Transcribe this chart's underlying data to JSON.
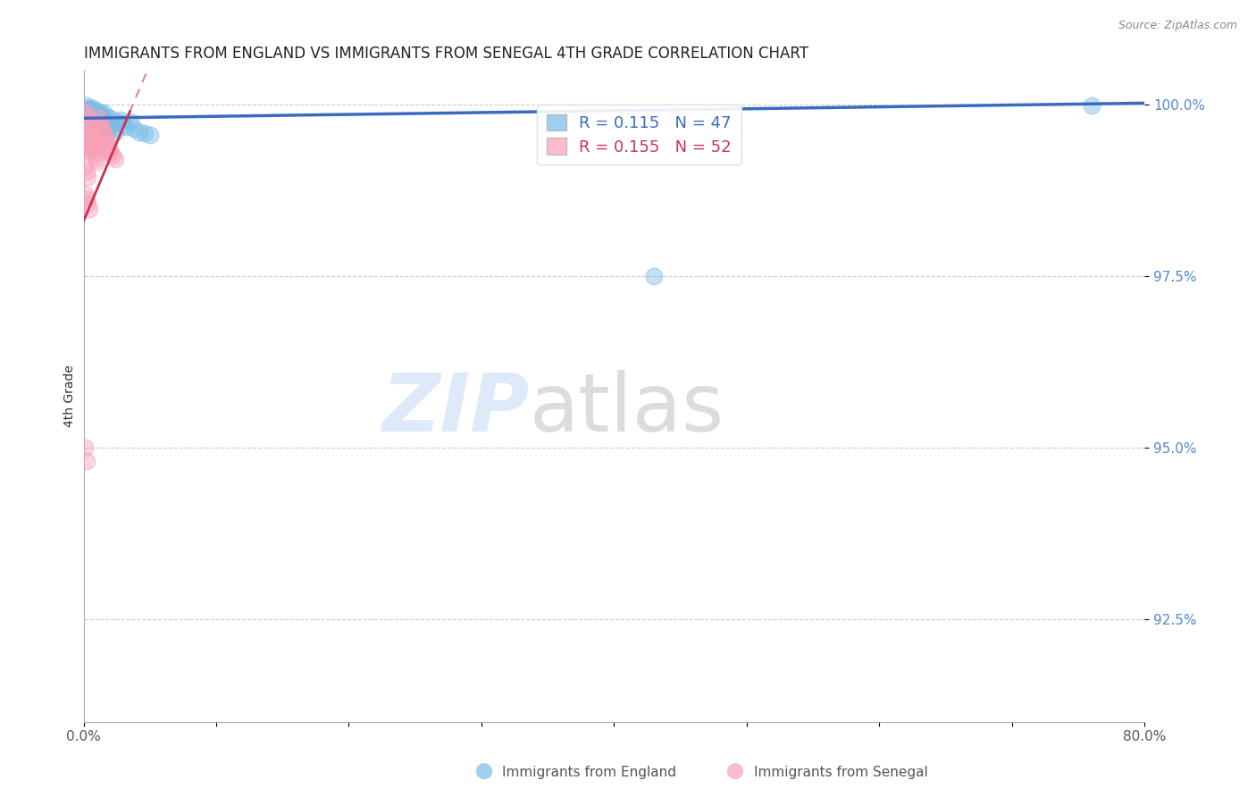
{
  "title": "IMMIGRANTS FROM ENGLAND VS IMMIGRANTS FROM SENEGAL 4TH GRADE CORRELATION CHART",
  "source": "Source: ZipAtlas.com",
  "ylabel": "4th Grade",
  "xlim": [
    0.0,
    0.8
  ],
  "ylim": [
    0.91,
    1.005
  ],
  "x_ticks": [
    0.0,
    0.1,
    0.2,
    0.3,
    0.4,
    0.5,
    0.6,
    0.7,
    0.8
  ],
  "x_tick_labels": [
    "0.0%",
    "",
    "",
    "",
    "",
    "",
    "",
    "",
    "80.0%"
  ],
  "y_ticks": [
    0.925,
    0.95,
    0.975,
    1.0
  ],
  "y_tick_labels": [
    "92.5%",
    "95.0%",
    "97.5%",
    "100.0%"
  ],
  "england_color": "#7abce8",
  "senegal_color": "#f8a0b8",
  "england_R": 0.115,
  "england_N": 47,
  "senegal_R": 0.155,
  "senegal_N": 52,
  "england_line_color": "#3a6bbf",
  "senegal_line_color": "#cc3355",
  "england_points_x": [
    0.001,
    0.002,
    0.003,
    0.004,
    0.005,
    0.006,
    0.007,
    0.008,
    0.009,
    0.01,
    0.011,
    0.012,
    0.013,
    0.014,
    0.015,
    0.016,
    0.017,
    0.018,
    0.02,
    0.022,
    0.024,
    0.026,
    0.028,
    0.03,
    0.032,
    0.035,
    0.038,
    0.042,
    0.046,
    0.05,
    0.002,
    0.003,
    0.004,
    0.005,
    0.006,
    0.007,
    0.008,
    0.009,
    0.01,
    0.011,
    0.012,
    0.013,
    0.015,
    0.018,
    0.02,
    0.76,
    0.43
  ],
  "england_points_y": [
    0.9992,
    0.9988,
    0.9985,
    0.9982,
    0.9978,
    0.999,
    0.9987,
    0.9983,
    0.998,
    0.9976,
    0.9985,
    0.998,
    0.9986,
    0.9972,
    0.9978,
    0.997,
    0.9965,
    0.996,
    0.997,
    0.9965,
    0.996,
    0.9975,
    0.9978,
    0.997,
    0.9968,
    0.9975,
    0.9965,
    0.996,
    0.9958,
    0.9955,
    0.9998,
    0.9995,
    0.9992,
    0.999,
    0.9988,
    0.9995,
    0.9992,
    0.999,
    0.9987,
    0.9984,
    0.999,
    0.9985,
    0.9988,
    0.9982,
    0.998,
    0.9998,
    0.975
  ],
  "senegal_points_x": [
    0.001,
    0.002,
    0.003,
    0.004,
    0.005,
    0.006,
    0.007,
    0.008,
    0.009,
    0.01,
    0.011,
    0.012,
    0.013,
    0.014,
    0.015,
    0.016,
    0.017,
    0.018,
    0.019,
    0.02,
    0.001,
    0.002,
    0.003,
    0.004,
    0.005,
    0.006,
    0.007,
    0.008,
    0.009,
    0.01,
    0.001,
    0.002,
    0.003,
    0.004,
    0.005,
    0.001,
    0.002,
    0.003,
    0.016,
    0.018,
    0.02,
    0.022,
    0.024,
    0.001,
    0.002,
    0.003,
    0.001,
    0.002,
    0.003,
    0.004,
    0.001,
    0.002
  ],
  "senegal_points_y": [
    0.999,
    0.9985,
    0.9978,
    0.9972,
    0.9968,
    0.9962,
    0.9958,
    0.9952,
    0.9948,
    0.9942,
    0.998,
    0.9975,
    0.997,
    0.9965,
    0.996,
    0.9955,
    0.9948,
    0.9942,
    0.9936,
    0.993,
    0.997,
    0.9965,
    0.9958,
    0.9952,
    0.9946,
    0.994,
    0.9934,
    0.9928,
    0.9922,
    0.9916,
    0.9962,
    0.9955,
    0.9948,
    0.994,
    0.9934,
    0.995,
    0.9942,
    0.9935,
    0.9945,
    0.9938,
    0.9932,
    0.9926,
    0.992,
    0.991,
    0.9902,
    0.9895,
    0.987,
    0.9862,
    0.9855,
    0.9848,
    0.95,
    0.948
  ]
}
